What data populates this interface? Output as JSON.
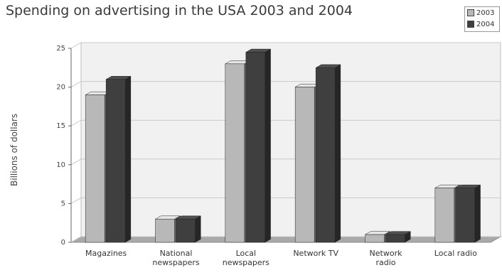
{
  "title": "Spending on advertising in the USA 2003 and 2004",
  "colors": {
    "s2003": "#b8b8b8",
    "s2004": "#3f3f3f",
    "grid": "#c9c9c9",
    "plot_bg": "#f1f1f1"
  },
  "chart_data": {
    "type": "bar",
    "title": "Spending on advertising in the USA 2003 and 2004",
    "ylabel": "Billions of dollars",
    "xlabel": "",
    "ylim": [
      0,
      25
    ],
    "yticks": [
      0,
      5,
      10,
      15,
      20,
      25
    ],
    "grid": true,
    "legend_position": "top-right",
    "categories": [
      [
        "Magazines"
      ],
      [
        "National",
        "newspapers"
      ],
      [
        "Local",
        "newspapers"
      ],
      [
        "Network TV"
      ],
      [
        "Network",
        "radio"
      ],
      [
        "Local radio"
      ]
    ],
    "series": [
      {
        "name": "2003",
        "values": [
          19,
          3,
          23,
          20,
          1,
          7
        ]
      },
      {
        "name": "2004",
        "values": [
          21,
          3,
          24.5,
          22.5,
          1,
          7
        ]
      }
    ]
  }
}
